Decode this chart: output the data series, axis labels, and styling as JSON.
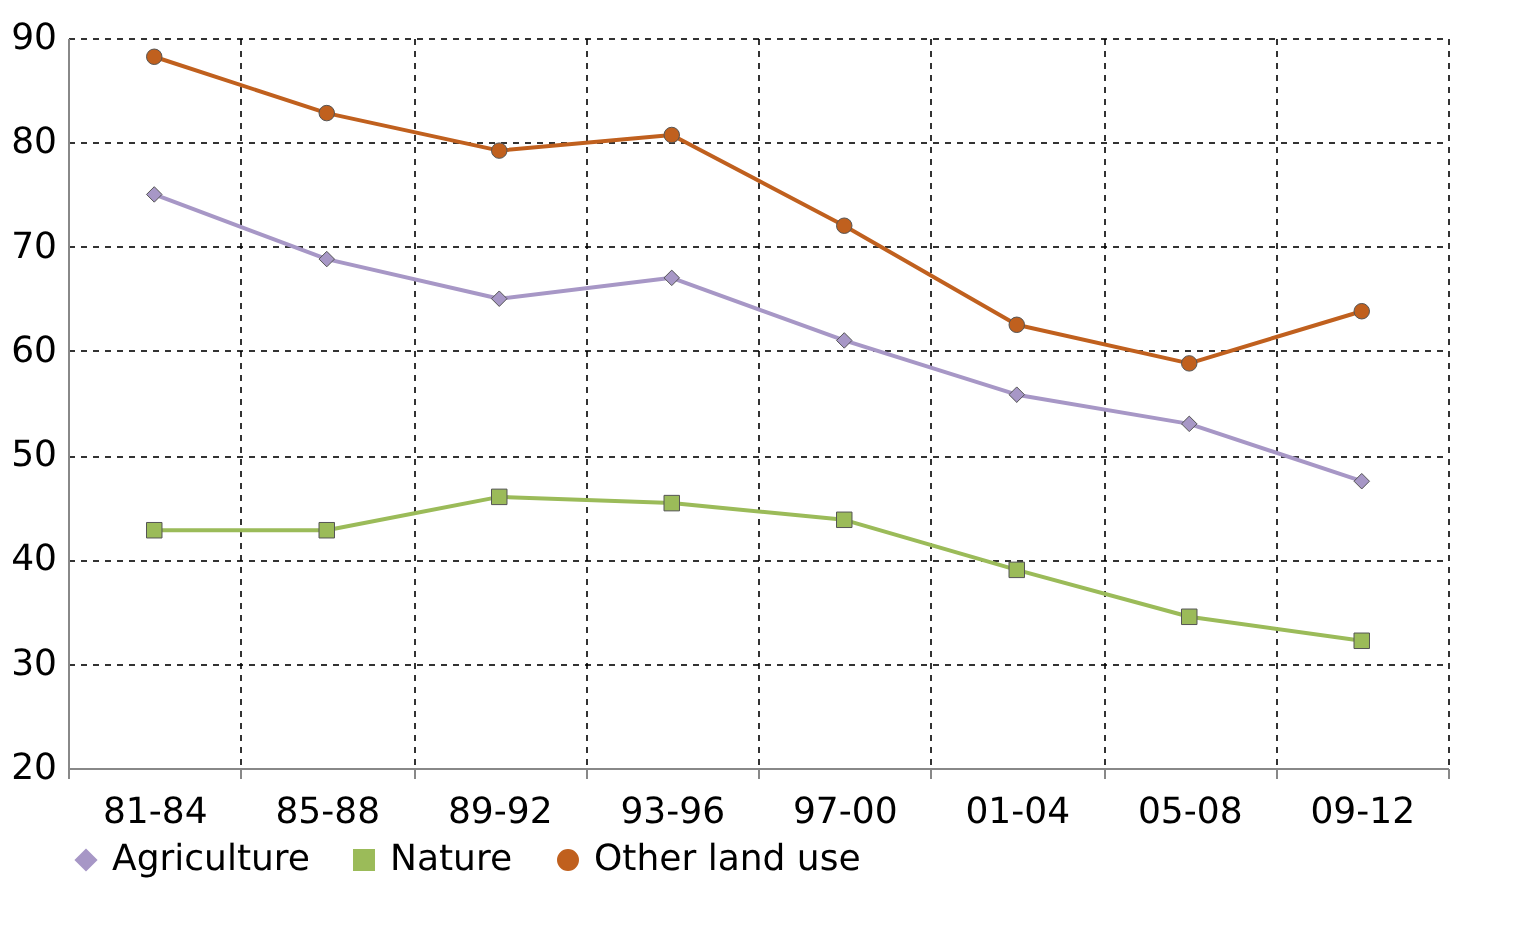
{
  "chart_data": {
    "type": "line",
    "categories": [
      "81-84",
      "85-88",
      "89-92",
      "93-96",
      "97-00",
      "01-04",
      "05-08",
      "09-12"
    ],
    "series": [
      {
        "name": "Agriculture",
        "color": "#a797c6",
        "marker": "diamond",
        "values": [
          75,
          68.8,
          65,
          67,
          61,
          55.8,
          53,
          47.5
        ]
      },
      {
        "name": "Nature",
        "color": "#9bbb59",
        "marker": "square",
        "values": [
          42.8,
          42.8,
          46,
          45.4,
          43.8,
          39,
          34.5,
          32.2
        ]
      },
      {
        "name": "Other land use",
        "color": "#c0601e",
        "marker": "circle",
        "values": [
          88.2,
          82.8,
          79.2,
          80.7,
          72,
          62.5,
          58.8,
          63.8
        ]
      }
    ],
    "ylim": [
      20,
      90
    ],
    "yticks": [
      20,
      30,
      40,
      50,
      60,
      70,
      80,
      90
    ],
    "grid": true,
    "legend": "bottom"
  }
}
